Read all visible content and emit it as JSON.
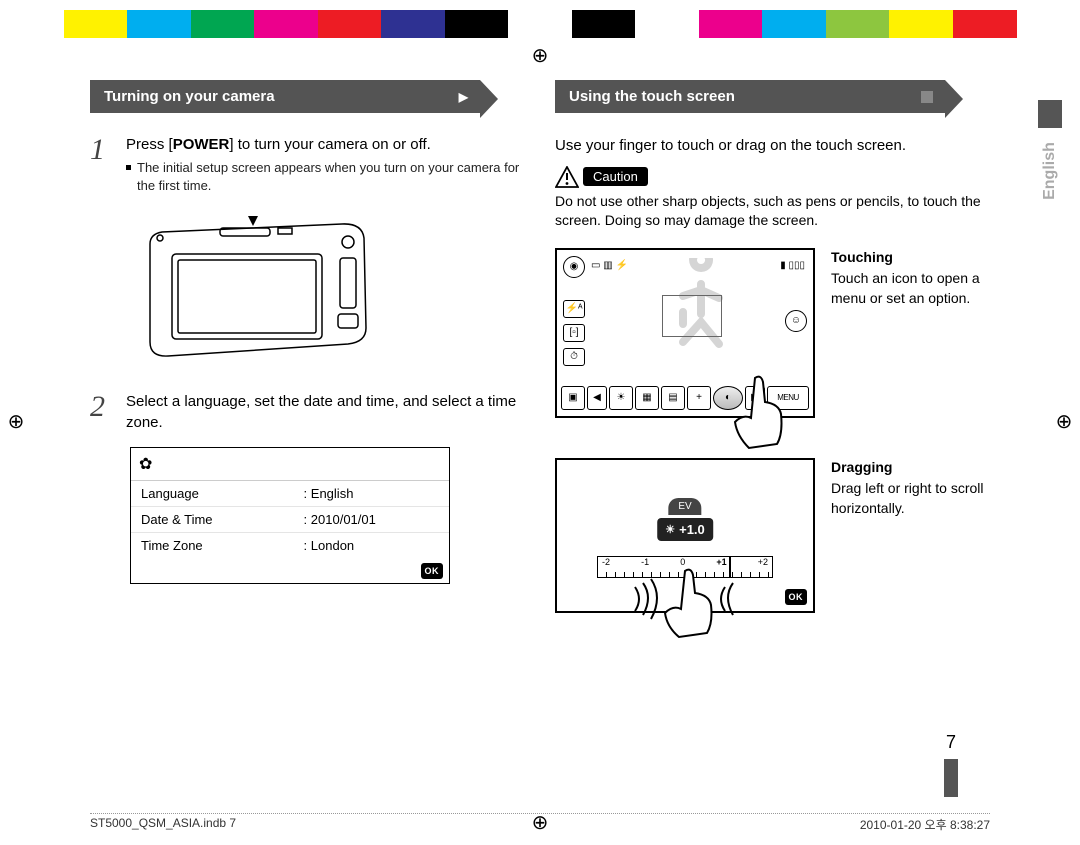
{
  "colorbar": [
    "#ffffff",
    "#fff200",
    "#00aeef",
    "#00a651",
    "#ec008c",
    "#ed1c24",
    "#2e3192",
    "#000000",
    "#ffffff",
    "#000000",
    "#ffffff",
    "#ec008c",
    "#00aeef",
    "#8dc63f",
    "#fff200",
    "#ed1c24",
    "#ffffff"
  ],
  "sidebar_language": "English",
  "page_number": "7",
  "footer_left": "ST5000_QSM_ASIA.indb   7",
  "footer_right": "2010-01-20   오후 8:38:27",
  "left": {
    "heading": "Turning on your camera",
    "heading_marker": "▶",
    "step1_num": "1",
    "step1_text_a": "Press [",
    "step1_text_bold": "POWER",
    "step1_text_b": "] to turn your camera on or off.",
    "step1_bullet": "The initial setup screen appears when you turn on your camera for the first time.",
    "step2_num": "2",
    "step2_text": "Select a language, set the date and time, and select a time zone.",
    "settings": {
      "rows": [
        {
          "k": "Language",
          "v": "English"
        },
        {
          "k": "Date & Time",
          "v": "2010/01/01"
        },
        {
          "k": "Time Zone",
          "v": "London"
        }
      ],
      "ok_label": "OK"
    }
  },
  "right": {
    "heading": "Using the touch screen",
    "intro": "Use your finger to touch or drag on the touch screen.",
    "caution_label": "Caution",
    "caution_text": "Do not use other sharp objects, such as pens or pencils, to touch the screen. Doing so may damage the screen.",
    "touching": {
      "title": "Touching",
      "body": "Touch an icon to open a menu or set an option.",
      "menu_label": "MENU"
    },
    "dragging": {
      "title": "Dragging",
      "body": "Drag left or right to scroll horizontally.",
      "ev_label": "EV",
      "ev_value": "+1.0",
      "ok_label": "OK",
      "scale": [
        "-2",
        "-1",
        "0",
        "+1",
        "+2"
      ]
    }
  }
}
